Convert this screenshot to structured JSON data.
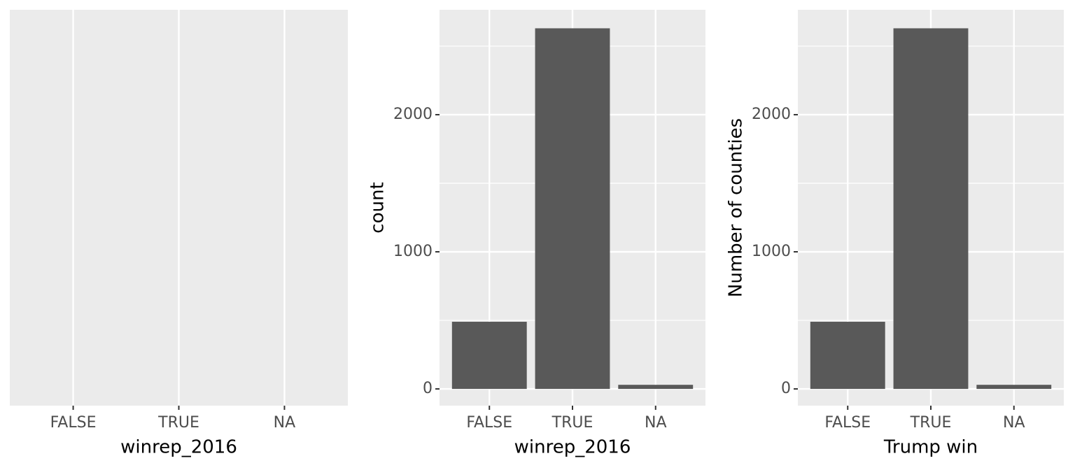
{
  "chart_data": [
    {
      "type": "blank",
      "categories": [
        "FALSE",
        "TRUE",
        "NA"
      ],
      "xlabel": "winrep_2016",
      "grid": true
    },
    {
      "type": "bar",
      "categories": [
        "FALSE",
        "TRUE",
        "NA"
      ],
      "values": [
        490,
        2630,
        30
      ],
      "color": "#595959",
      "xlabel": "winrep_2016",
      "ylabel": "count",
      "ylim": [
        -122,
        2765
      ],
      "yticks": [
        0,
        1000,
        2000
      ],
      "yminor": [
        500,
        1500,
        2500
      ],
      "grid": true
    },
    {
      "type": "bar",
      "categories": [
        "FALSE",
        "TRUE",
        "NA"
      ],
      "values": [
        490,
        2630,
        30
      ],
      "color": "#595959",
      "xlabel": "Trump win",
      "ylabel": "Number of counties",
      "ylim": [
        -122,
        2765
      ],
      "yticks": [
        0,
        1000,
        2000
      ],
      "yminor": [
        500,
        1500,
        2500
      ],
      "grid": true
    }
  ]
}
